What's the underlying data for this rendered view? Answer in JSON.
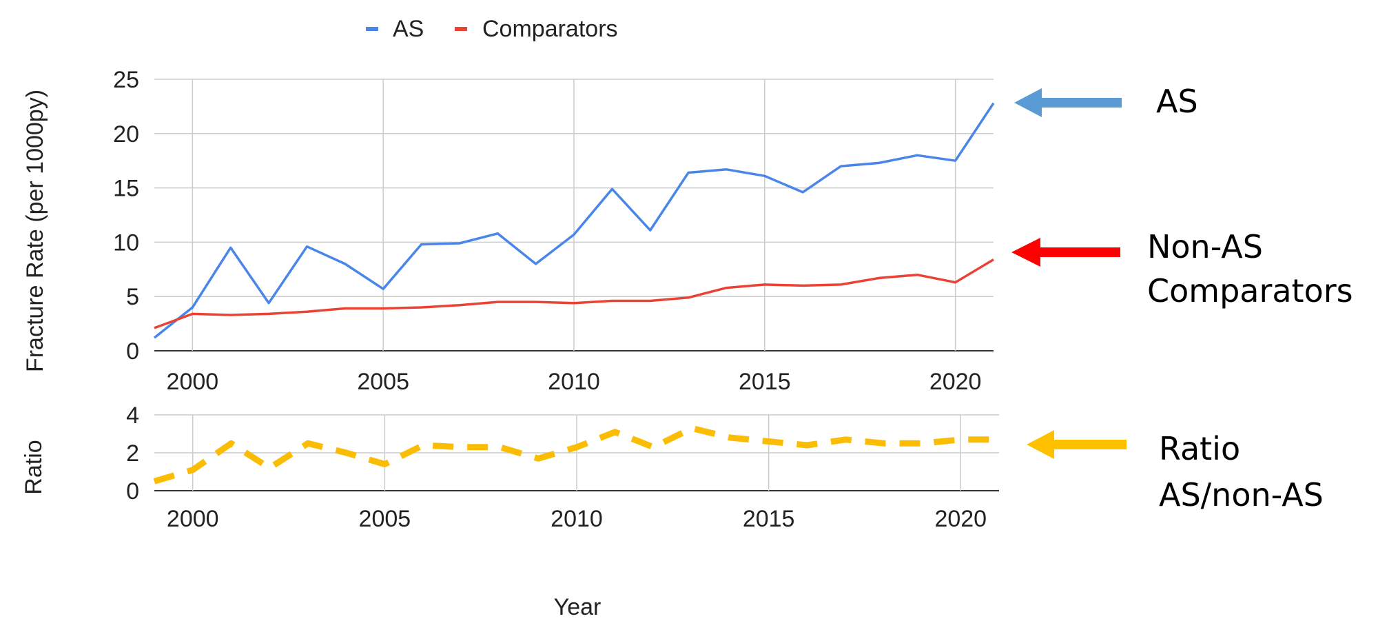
{
  "chart_data": [
    {
      "type": "line",
      "x": [
        1999,
        2000,
        2001,
        2002,
        2003,
        2004,
        2005,
        2006,
        2007,
        2008,
        2009,
        2010,
        2011,
        2012,
        2013,
        2014,
        2015,
        2016,
        2017,
        2018,
        2019,
        2020,
        2021
      ],
      "series": [
        {
          "name": "AS",
          "color": "#4a86e8",
          "values": [
            1.2,
            4.0,
            9.5,
            4.4,
            9.6,
            8.0,
            5.7,
            9.8,
            9.9,
            10.8,
            8.0,
            10.7,
            14.9,
            11.1,
            16.4,
            16.7,
            16.1,
            14.6,
            17.0,
            17.3,
            18.0,
            17.5,
            22.8
          ]
        },
        {
          "name": "Comparators",
          "color": "#ea4335",
          "values": [
            2.1,
            3.4,
            3.3,
            3.4,
            3.6,
            3.9,
            3.9,
            4.0,
            4.2,
            4.5,
            4.5,
            4.4,
            4.6,
            4.6,
            4.9,
            5.8,
            6.1,
            6.0,
            6.1,
            6.7,
            7.0,
            6.3,
            8.4
          ]
        }
      ],
      "xlabel": "",
      "ylabel": "Fracture Rate (per 1000py)",
      "xlim": [
        1999,
        2021
      ],
      "ylim": [
        0,
        25
      ],
      "yticks": [
        "0",
        "5",
        "10",
        "15",
        "20",
        "25"
      ],
      "xticks": [
        "2000",
        "2005",
        "2010",
        "2015",
        "2020"
      ],
      "grid": true,
      "legend": {
        "position": "top",
        "entries": [
          "AS",
          "Comparators"
        ]
      }
    },
    {
      "type": "line",
      "x": [
        1999,
        2000,
        2001,
        2002,
        2003,
        2004,
        2005,
        2006,
        2007,
        2008,
        2009,
        2010,
        2011,
        2012,
        2013,
        2014,
        2015,
        2016,
        2017,
        2018,
        2019,
        2020,
        2021
      ],
      "series": [
        {
          "color": "#fbbc04",
          "style": "dashed",
          "values": [
            0.5,
            1.1,
            2.5,
            1.2,
            2.5,
            2.0,
            1.4,
            2.4,
            2.3,
            2.3,
            1.7,
            2.3,
            3.1,
            2.3,
            3.3,
            2.8,
            2.6,
            2.4,
            2.7,
            2.5,
            2.5,
            2.7,
            2.7
          ]
        }
      ],
      "xlabel": "Year",
      "ylabel": "Ratio",
      "xlim": [
        1999,
        2021
      ],
      "ylim": [
        0,
        4
      ],
      "yticks": [
        "0",
        "2",
        "4"
      ],
      "xticks": [
        "2000",
        "2005",
        "2010",
        "2015",
        "2020"
      ],
      "grid": true
    }
  ],
  "annotations": [
    {
      "text_lines": [
        "AS"
      ],
      "arrow_color": "#5b9bd5"
    },
    {
      "text_lines": [
        "Non-AS",
        "Comparators"
      ],
      "arrow_color": "#ff0000"
    },
    {
      "text_lines": [
        "Ratio",
        "AS/non-AS"
      ],
      "arrow_color": "#ffc000"
    }
  ]
}
